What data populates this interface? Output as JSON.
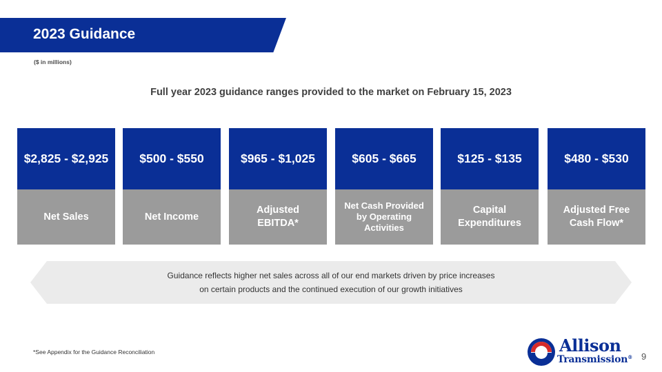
{
  "slide": {
    "title": "2023 Guidance",
    "units_note": "($ in millions)",
    "subtitle": "Full year 2023 guidance ranges provided to the market on February 15, 2023"
  },
  "cards": [
    {
      "value": "$2,825 - $2,925",
      "label": "Net Sales"
    },
    {
      "value": "$500 - $550",
      "label": "Net Income"
    },
    {
      "value": "$965 - $1,025",
      "label": "Adjusted\nEBITDA*"
    },
    {
      "value": "$605 - $665",
      "label": "Net Cash Provided\nby Operating\nActivities"
    },
    {
      "value": "$125 - $135",
      "label": "Capital\nExpenditures"
    },
    {
      "value": "$480 - $530",
      "label": "Adjusted Free\nCash Flow*"
    }
  ],
  "callout": {
    "line1": "Guidance reflects higher net sales across all of our end markets driven by price increases",
    "line2": "on certain products and the continued execution of our growth initiatives"
  },
  "footer": {
    "footnote": "*See Appendix for the Guidance Reconciliation",
    "logo_line1": "Allison",
    "logo_line2": "Transmission",
    "logo_reg": "®",
    "page_number": "9"
  },
  "colors": {
    "brand_blue": "#0a2f96",
    "card_gray": "#9b9b9b",
    "callout_gray": "#ebebeb",
    "logo_red": "#d62b2b"
  },
  "icons": {
    "logo_mark": "allison-emblem-icon"
  }
}
